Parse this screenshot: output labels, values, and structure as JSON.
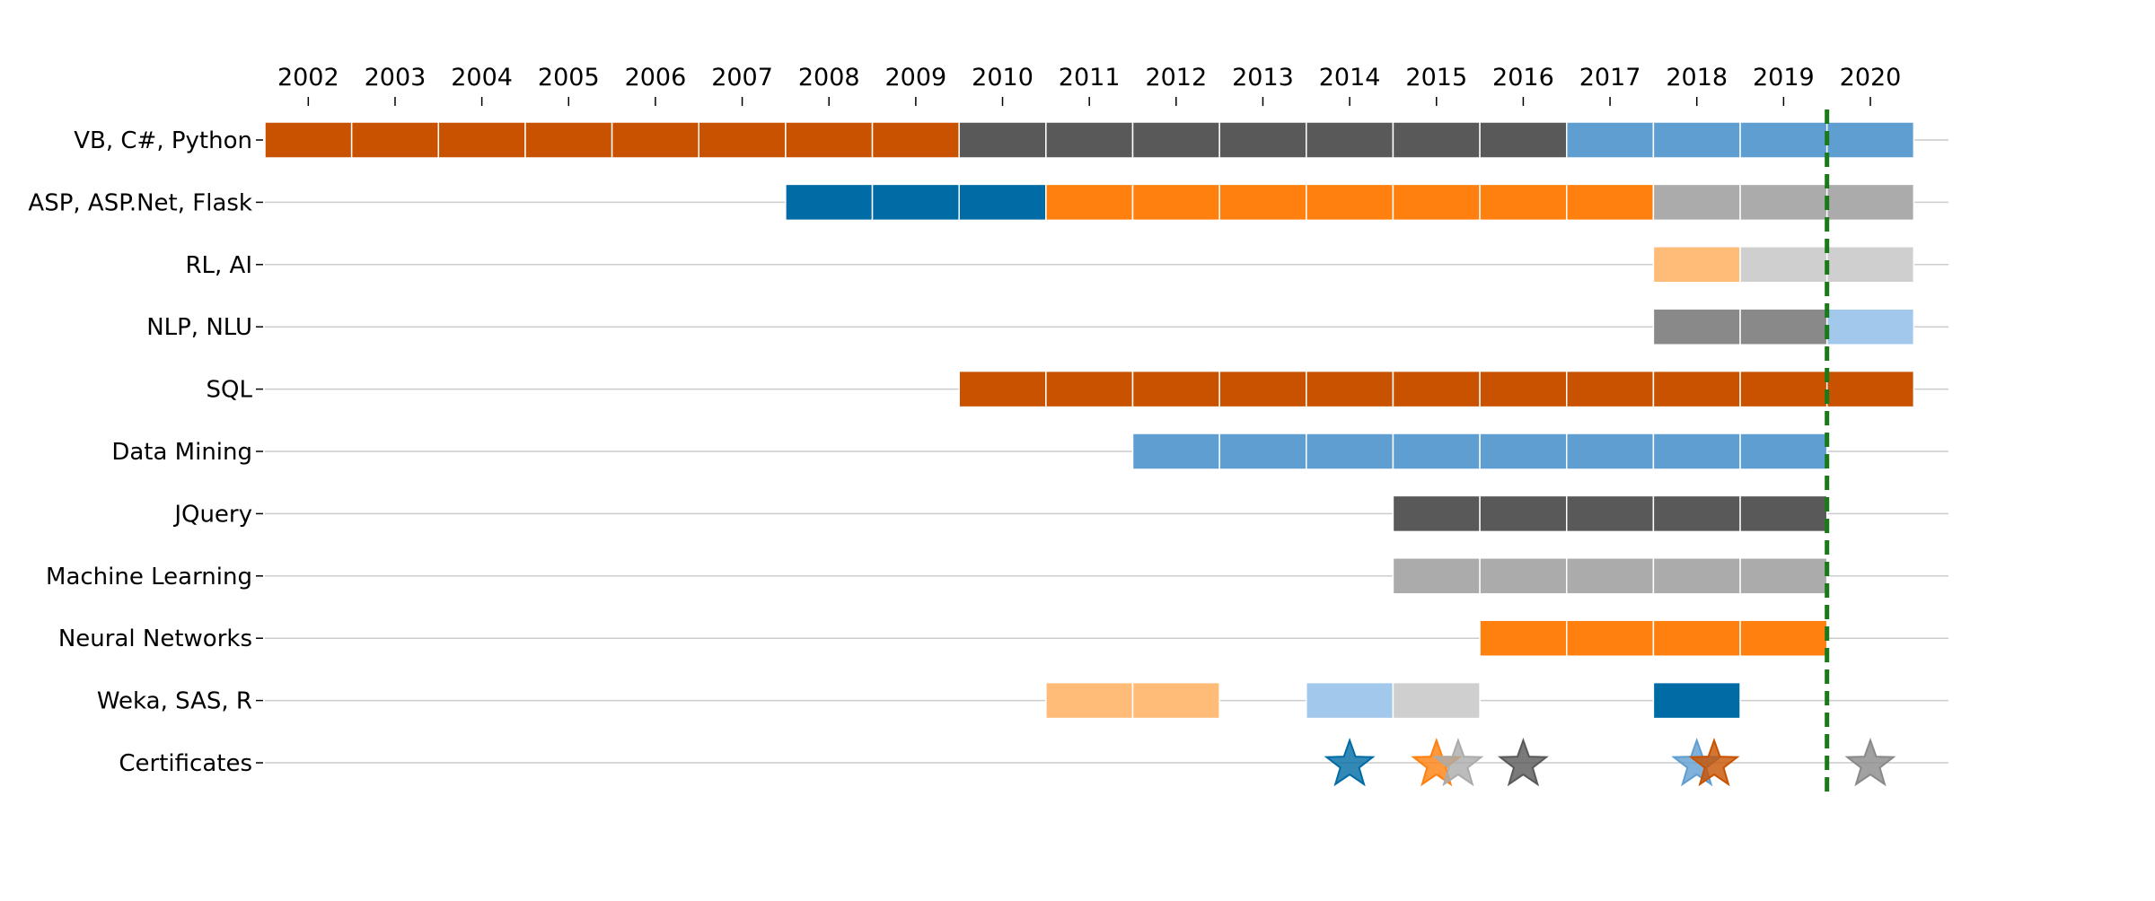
{
  "chart_data": {
    "type": "timeline",
    "title": "",
    "xlabel": "",
    "ylabel": "",
    "x_axis_position": "top",
    "xlim": [
      2001.5,
      2020.9
    ],
    "x_ticks": [
      2002,
      2003,
      2004,
      2005,
      2006,
      2007,
      2008,
      2009,
      2010,
      2011,
      2012,
      2013,
      2014,
      2015,
      2016,
      2017,
      2018,
      2019,
      2020
    ],
    "grid": "horizontal",
    "legend": "none",
    "current_year_marker": {
      "x": 2019.5,
      "color": "#1a7a1a",
      "style": "dashed"
    },
    "categories": [
      "VB, C#, Python",
      "ASP, ASP.Net, Flask",
      "RL, AI",
      "NLP, NLU",
      "SQL",
      "Data Mining",
      "JQuery",
      "Machine Learning",
      "Neural Networks",
      "Weka, SAS, R",
      "Certificates"
    ],
    "colors": {
      "dark_orange": "#c85200",
      "dark_gray": "#595959",
      "blue": "#5f9ed1",
      "dark_blue": "#006ba4",
      "orange": "#ff800e",
      "gray": "#ababab",
      "light_orange": "#ffbc79",
      "light_gray": "#cfcfcf",
      "mid_gray": "#898989",
      "light_blue": "#a2c8ec"
    },
    "series": [
      {
        "category": "VB, C#, Python",
        "segments": [
          {
            "start": 2002,
            "end": 2009,
            "color": "#c85200"
          },
          {
            "start": 2010,
            "end": 2016,
            "color": "#595959"
          },
          {
            "start": 2017,
            "end": 2020,
            "color": "#5f9ed1"
          }
        ]
      },
      {
        "category": "ASP, ASP.Net, Flask",
        "segments": [
          {
            "start": 2008,
            "end": 2010,
            "color": "#006ba4"
          },
          {
            "start": 2011,
            "end": 2017,
            "color": "#ff800e"
          },
          {
            "start": 2018,
            "end": 2020,
            "color": "#ababab"
          }
        ]
      },
      {
        "category": "RL, AI",
        "segments": [
          {
            "start": 2018,
            "end": 2018,
            "color": "#ffbc79"
          },
          {
            "start": 2019,
            "end": 2020,
            "color": "#cfcfcf"
          }
        ]
      },
      {
        "category": "NLP, NLU",
        "segments": [
          {
            "start": 2018,
            "end": 2019,
            "color": "#898989"
          },
          {
            "start": 2020,
            "end": 2020,
            "color": "#a2c8ec"
          }
        ]
      },
      {
        "category": "SQL",
        "segments": [
          {
            "start": 2010,
            "end": 2020,
            "color": "#c85200"
          }
        ]
      },
      {
        "category": "Data Mining",
        "segments": [
          {
            "start": 2012,
            "end": 2019,
            "color": "#5f9ed1"
          }
        ]
      },
      {
        "category": "JQuery",
        "segments": [
          {
            "start": 2015,
            "end": 2019,
            "color": "#595959"
          }
        ]
      },
      {
        "category": "Machine Learning",
        "segments": [
          {
            "start": 2015,
            "end": 2019,
            "color": "#ababab"
          }
        ]
      },
      {
        "category": "Neural Networks",
        "segments": [
          {
            "start": 2016,
            "end": 2019,
            "color": "#ff800e"
          }
        ]
      },
      {
        "category": "Weka, SAS, R",
        "segments": [
          {
            "start": 2011,
            "end": 2012,
            "color": "#ffbc79"
          },
          {
            "start": 2014,
            "end": 2014,
            "color": "#a2c8ec"
          },
          {
            "start": 2015,
            "end": 2015,
            "color": "#cfcfcf"
          },
          {
            "start": 2018,
            "end": 2018,
            "color": "#006ba4"
          }
        ]
      }
    ],
    "certificates": [
      {
        "x": 2014.0,
        "color": "#006ba4"
      },
      {
        "x": 2015.0,
        "color": "#ff800e"
      },
      {
        "x": 2015.25,
        "color": "#ababab"
      },
      {
        "x": 2016.0,
        "color": "#595959"
      },
      {
        "x": 2018.0,
        "color": "#5f9ed1"
      },
      {
        "x": 2018.2,
        "color": "#c85200"
      },
      {
        "x": 2020.0,
        "color": "#898989"
      }
    ]
  }
}
